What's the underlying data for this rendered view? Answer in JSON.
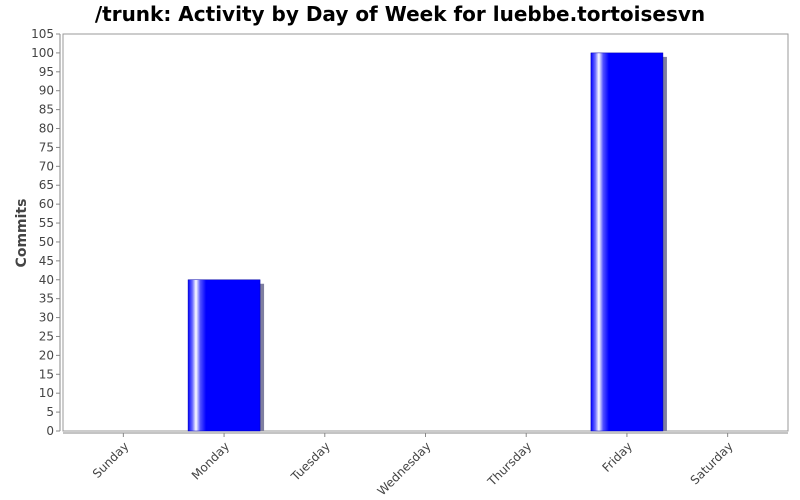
{
  "chart_data": {
    "type": "bar",
    "title": "/trunk: Activity by Day of Week for luebbe.tortoisesvn",
    "xlabel": "",
    "ylabel": "Commits",
    "categories": [
      "Sunday",
      "Monday",
      "Tuesday",
      "Wednesday",
      "Thursday",
      "Friday",
      "Saturday"
    ],
    "values": [
      0,
      40,
      0,
      0,
      0,
      100,
      0
    ],
    "ylim": [
      0,
      105
    ],
    "yticks": [
      0,
      5,
      10,
      15,
      20,
      25,
      30,
      35,
      40,
      45,
      50,
      55,
      60,
      65,
      70,
      75,
      80,
      85,
      90,
      95,
      100,
      105
    ],
    "bar_color": "#0000ff",
    "shadow_color": "#7f7f9f",
    "grid": false,
    "legend": "none"
  }
}
